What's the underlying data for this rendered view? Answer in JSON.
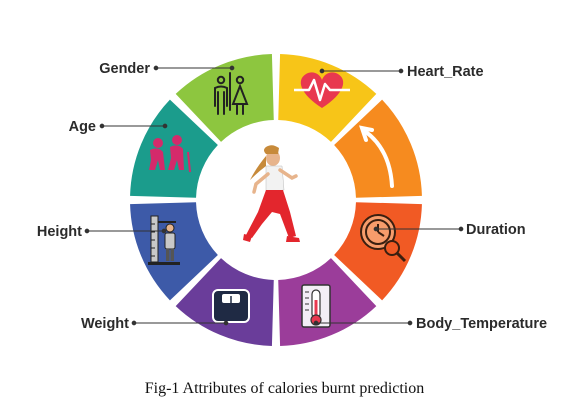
{
  "diagram": {
    "center_icon": "runner-icon",
    "segments": [
      {
        "id": "gender",
        "label": "Gender",
        "color": "#8dc63f",
        "icon": "restroom-icon"
      },
      {
        "id": "heart-rate",
        "label": "Heart_Rate",
        "color": "#f7c518",
        "icon": "heart-rate-icon"
      },
      {
        "id": "trend",
        "label": "",
        "color": "#f68b1f",
        "icon": "curved-arrow-icon"
      },
      {
        "id": "duration",
        "label": "Duration",
        "color": "#f15a24",
        "icon": "clock-search-icon"
      },
      {
        "id": "body-temperature",
        "label": "Body_Temperature",
        "color": "#9b3d9a",
        "icon": "thermometer-icon"
      },
      {
        "id": "weight",
        "label": "Weight",
        "color": "#6a3d9a",
        "icon": "scale-icon"
      },
      {
        "id": "height",
        "label": "Height",
        "color": "#3d5aa8",
        "icon": "height-measure-icon"
      },
      {
        "id": "age",
        "label": "Age",
        "color": "#1b9c8c",
        "icon": "elderly-couple-icon"
      }
    ]
  },
  "caption": "Fig-1 Attributes of calories burnt prediction"
}
